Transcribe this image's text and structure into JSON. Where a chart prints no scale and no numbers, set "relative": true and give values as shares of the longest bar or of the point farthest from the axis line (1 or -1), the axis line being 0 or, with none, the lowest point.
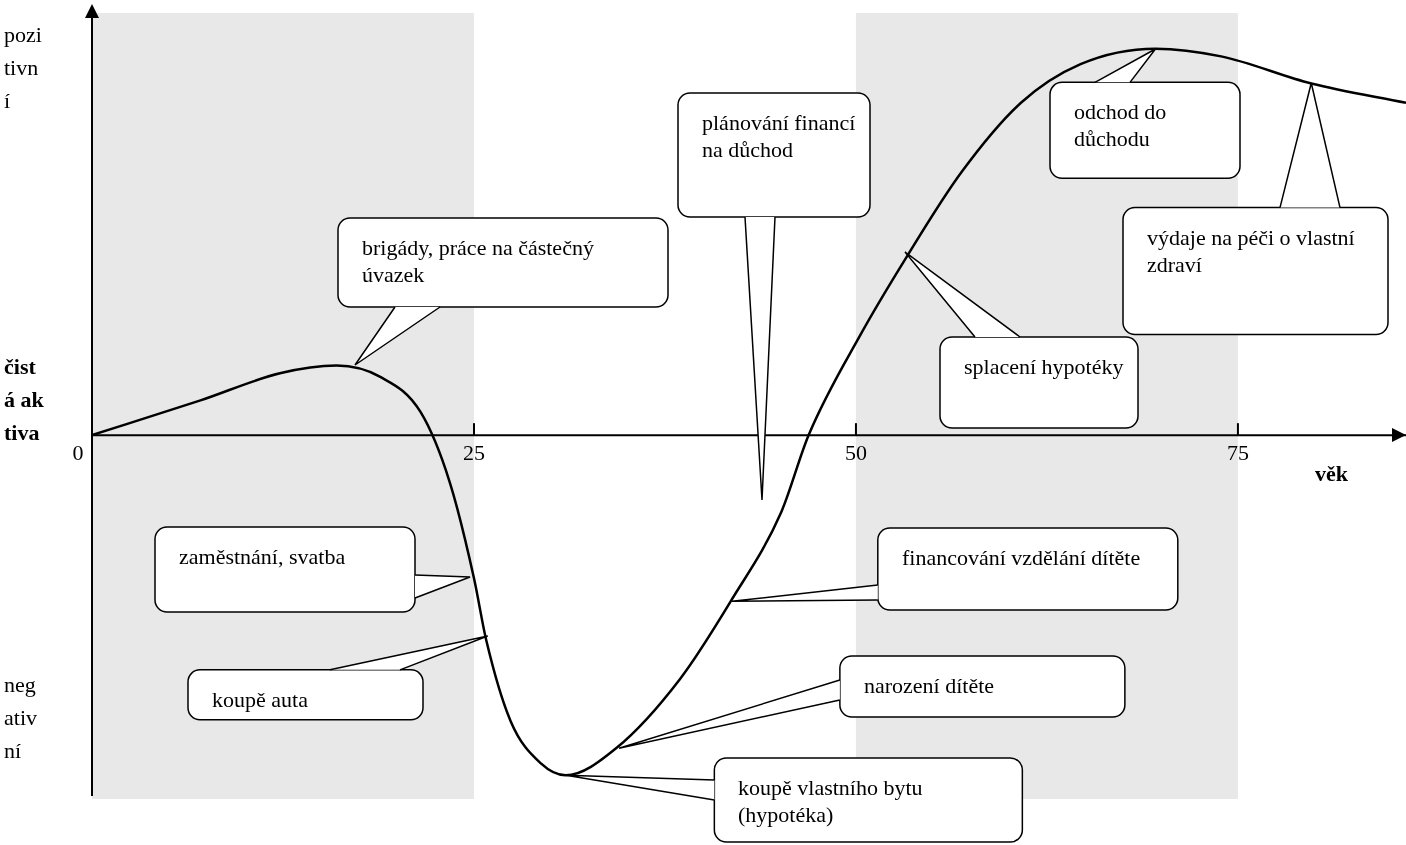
{
  "chart_data": {
    "type": "line",
    "relative": true,
    "xlabel": "věk",
    "ylabel": "čistá aktiva",
    "annotations": [
      "pozitivní",
      "negativní",
      "plánování financí na důchod",
      "brigády, práce na částečný úvazek",
      "zaměstnání, svatba",
      "splacení hypotéky",
      {
        "text": "koupě auta",
        "x": 25.9,
        "y": -0.52
      },
      {
        "text": "koupě vlastního bytu (hypotéka)",
        "x": 31,
        "y": -0.88
      },
      {
        "text": "narození dítěte",
        "x": 34.5,
        "y": -0.81
      },
      {
        "text": "financování vzdělání dítěte",
        "x": 41.9,
        "y": -0.43
      },
      {
        "text": "odchod do důchodu",
        "x": 69.6,
        "y": 1
      },
      {
        "text": "výdaje na péči o vlastní zdraví",
        "x": 79.8,
        "y": 0.91
      }
    ],
    "x": [
      0,
      7.1,
      12.3,
      16,
      18.9,
      21.5,
      23.4,
      25,
      25.8,
      27.4,
      29.4,
      31,
      34.3,
      38.5,
      41.8,
      45.1,
      46.9,
      50.3,
      53.3,
      56.9,
      60.8,
      64.7,
      69.6,
      73.9,
      79.8,
      86
    ],
    "series": [
      {
        "color": "#000000",
        "values": [
          0,
          0.09,
          0.16,
          0.18,
          0.15,
          0.06,
          -0.12,
          -0.37,
          -0.53,
          -0.74,
          -0.85,
          -0.88,
          -0.81,
          -0.63,
          -0.43,
          -0.2,
          0,
          0.26,
          0.46,
          0.68,
          0.86,
          0.96,
          1,
          0.98,
          0.91,
          0.86
        ]
      }
    ],
    "xlim": [
      0,
      86
    ],
    "xticks": [
      0,
      25,
      50,
      75
    ],
    "bands": [
      {
        "axis": "x",
        "from": 0,
        "to": 25,
        "color": "#e8e8e8"
      },
      {
        "axis": "x",
        "from": 50,
        "to": 75,
        "color": "#e8e8e8"
      }
    ],
    "legend": false,
    "marker": "none",
    "line_style": "solid"
  }
}
